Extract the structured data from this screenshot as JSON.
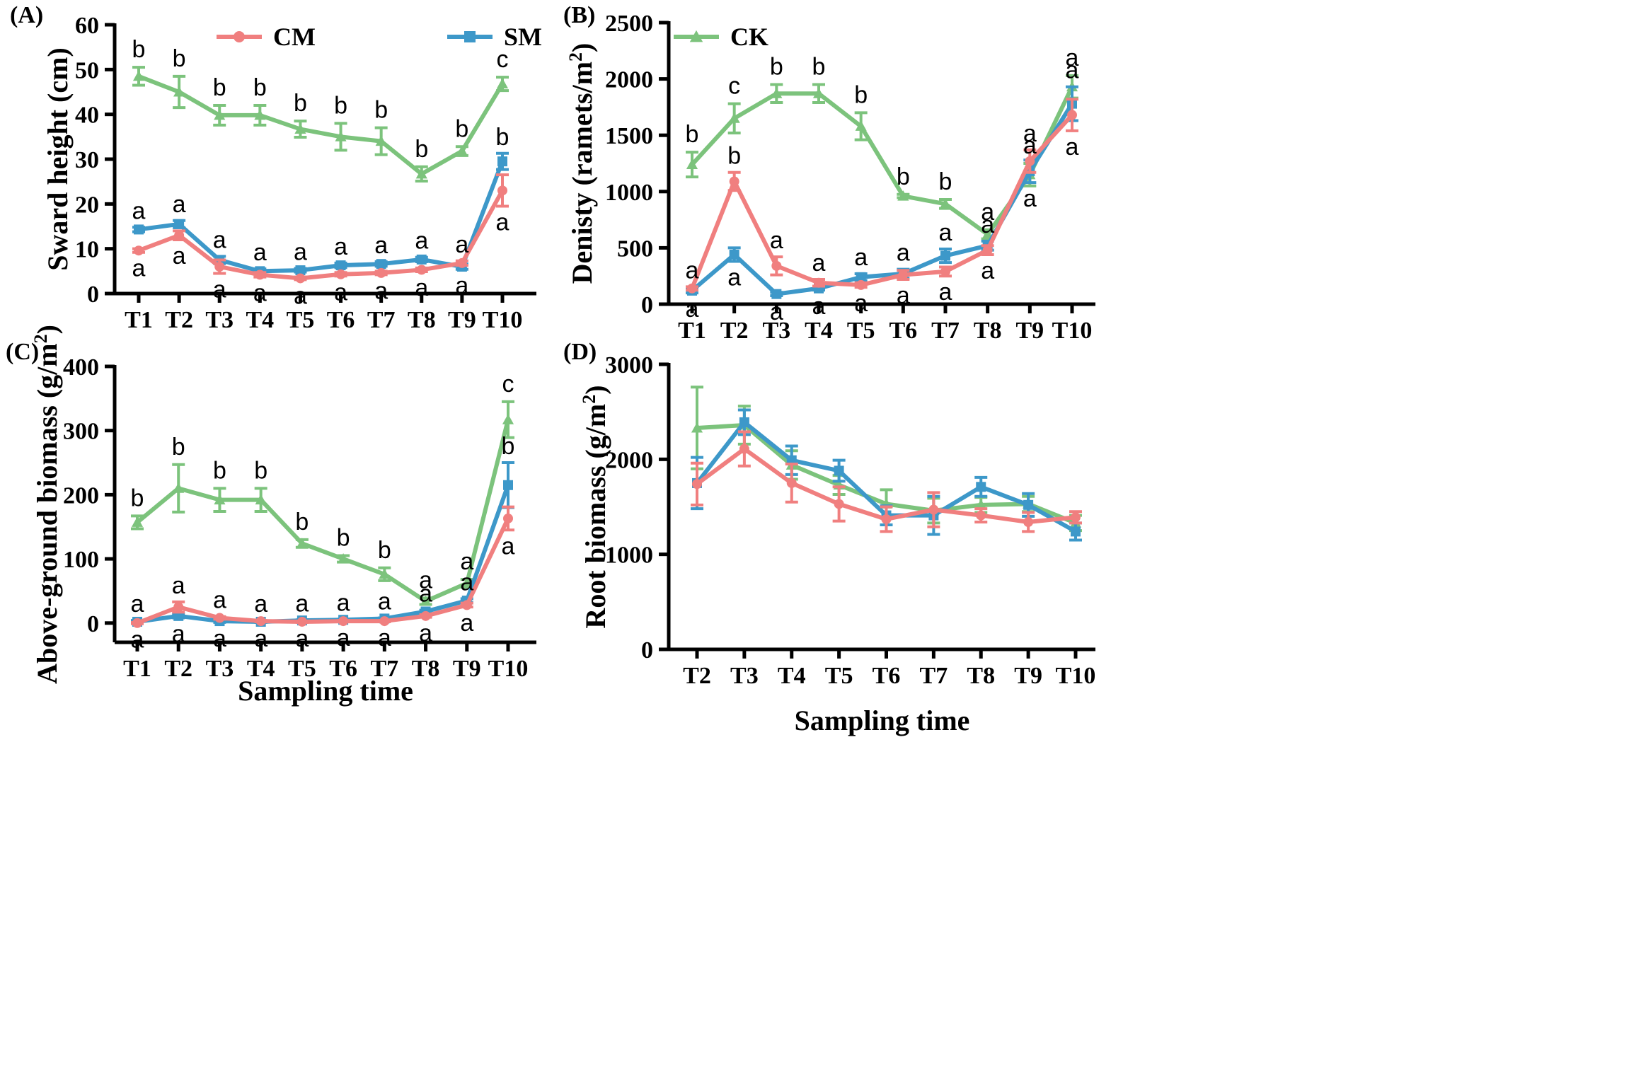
{
  "colors": {
    "CM": "#f07f7f",
    "SM": "#3d98c9",
    "CK": "#7cc37c"
  },
  "legend": [
    {
      "key": "CM",
      "label": "CM",
      "marker": "circle"
    },
    {
      "key": "SM",
      "label": "SM",
      "marker": "square"
    },
    {
      "key": "CK",
      "label": "CK",
      "marker": "triangle"
    }
  ],
  "chart_data": [
    {
      "panel": "(A)",
      "type": "line",
      "ylabel": "Sward height (cm)",
      "xlabel": "",
      "ylim": [
        0,
        60
      ],
      "yticks": [
        0,
        10,
        20,
        30,
        40,
        50,
        60
      ],
      "categories": [
        "T1",
        "T2",
        "T3",
        "T4",
        "T5",
        "T6",
        "T7",
        "T8",
        "T9",
        "T10"
      ],
      "series": [
        {
          "name": "CK",
          "values": [
            48.5,
            45,
            39.8,
            39.8,
            36.7,
            35,
            34,
            26.7,
            31.8,
            46.8
          ],
          "errors": [
            2,
            3.5,
            2.2,
            2.2,
            1.8,
            3,
            3,
            1.6,
            1,
            1.5
          ],
          "labels": [
            "b",
            "b",
            "b",
            "b",
            "b",
            "b",
            "b",
            "b",
            "b",
            "c"
          ]
        },
        {
          "name": "SM",
          "values": [
            14.3,
            15.5,
            7.5,
            5,
            5.2,
            6.3,
            6.6,
            7.6,
            6,
            29.5
          ],
          "errors": [
            0.5,
            0.8,
            0.8,
            0.5,
            0.4,
            0.5,
            0.5,
            0.5,
            0.6,
            1.8
          ],
          "labels": [
            "a",
            "a",
            "a",
            "a",
            "a",
            "a",
            "a",
            "a",
            "a",
            "b"
          ]
        },
        {
          "name": "CM",
          "values": [
            9.6,
            13,
            6,
            4.2,
            3.4,
            4.3,
            4.6,
            5.3,
            6.8,
            23
          ],
          "errors": [
            0.4,
            1,
            1.5,
            0.5,
            0.3,
            0.4,
            0.4,
            0.4,
            0.5,
            3.5
          ],
          "labels": [
            "a",
            "a",
            "a",
            "a",
            "a",
            "a",
            "a",
            "a",
            "a",
            "a"
          ]
        }
      ]
    },
    {
      "panel": "(B)",
      "type": "line",
      "ylabel": "Denisty (ramets/m²)",
      "xlabel": "",
      "ylim": [
        0,
        2500
      ],
      "yticks": [
        0,
        500,
        1000,
        1500,
        2000,
        2500
      ],
      "categories": [
        "T1",
        "T2",
        "T3",
        "T4",
        "T5",
        "T6",
        "T7",
        "T8",
        "T9",
        "T10"
      ],
      "series": [
        {
          "name": "CK",
          "values": [
            1240,
            1650,
            1870,
            1870,
            1580,
            960,
            890,
            620,
            1150,
            1930
          ],
          "errors": [
            110,
            130,
            80,
            80,
            120,
            15,
            40,
            40,
            100,
            100
          ],
          "labels": [
            "b",
            "c",
            "b",
            "b",
            "b",
            "b",
            "b",
            "a",
            "a",
            "a"
          ]
        },
        {
          "name": "SM",
          "values": [
            120,
            440,
            90,
            140,
            240,
            270,
            430,
            520,
            1180,
            1780
          ],
          "errors": [
            20,
            60,
            15,
            15,
            30,
            40,
            60,
            40,
            100,
            150
          ],
          "labels": [
            "a",
            "a",
            "a",
            "a",
            "a",
            "a",
            "a",
            "a",
            "a",
            "a"
          ]
        },
        {
          "name": "CM",
          "values": [
            140,
            1090,
            340,
            190,
            170,
            260,
            290,
            480,
            1270,
            1680
          ],
          "errors": [
            15,
            80,
            80,
            30,
            20,
            40,
            40,
            40,
            100,
            140
          ],
          "labels": [
            "a",
            "b",
            "a",
            "a",
            "a",
            "a",
            "a",
            "a",
            "a",
            "a"
          ]
        }
      ]
    },
    {
      "panel": "(C)",
      "type": "line",
      "ylabel": "Above-ground biomass (g/m²)",
      "xlabel": "Sampling time",
      "ylim": [
        -30,
        400
      ],
      "yticks": [
        0,
        100,
        200,
        300,
        400
      ],
      "categories": [
        "T1",
        "T2",
        "T3",
        "T4",
        "T5",
        "T6",
        "T7",
        "T8",
        "T9",
        "T10"
      ],
      "series": [
        {
          "name": "CK",
          "values": [
            157,
            210,
            192,
            192,
            124,
            100,
            76,
            34,
            62,
            317
          ],
          "errors": [
            10,
            37,
            18,
            18,
            6,
            5,
            10,
            5,
            6,
            28
          ],
          "labels": [
            "b",
            "b",
            "b",
            "b",
            "b",
            "b",
            "b",
            "a",
            "a",
            "c"
          ]
        },
        {
          "name": "SM",
          "values": [
            2,
            11,
            3,
            2,
            4,
            5,
            7,
            18,
            35,
            215
          ],
          "errors": [
            2,
            3,
            2,
            1,
            1,
            1,
            1,
            2,
            3,
            35
          ],
          "labels": [
            "a",
            "a",
            "a",
            "a",
            "a",
            "a",
            "a",
            "a",
            "a",
            "b"
          ]
        },
        {
          "name": "CM",
          "values": [
            0,
            25,
            8,
            3,
            2,
            3,
            3,
            11,
            28,
            163
          ],
          "errors": [
            1,
            8,
            2,
            1,
            1,
            1,
            1,
            2,
            3,
            18
          ],
          "labels": [
            "a",
            "a",
            "a",
            "a",
            "a",
            "a",
            "a",
            "a",
            "a",
            "a"
          ]
        }
      ]
    },
    {
      "panel": "(D)",
      "type": "line",
      "ylabel": "Root biomass (g/m²)",
      "xlabel": "Sampling time",
      "ylim": [
        0,
        3000
      ],
      "yticks": [
        0,
        1000,
        2000,
        3000
      ],
      "categories": [
        "T2",
        "T3",
        "T4",
        "T5",
        "T6",
        "T7",
        "T8",
        "T9",
        "T10"
      ],
      "series": [
        {
          "name": "CK",
          "values": [
            2330,
            2360,
            1940,
            1730,
            1530,
            1460,
            1520,
            1530,
            1330
          ],
          "errors": [
            430,
            200,
            150,
            100,
            150,
            130,
            80,
            80,
            80
          ],
          "labels": []
        },
        {
          "name": "SM",
          "values": [
            1750,
            2390,
            1990,
            1880,
            1410,
            1410,
            1710,
            1520,
            1240
          ],
          "errors": [
            270,
            130,
            150,
            110,
            100,
            200,
            100,
            120,
            90
          ],
          "labels": []
        },
        {
          "name": "CM",
          "values": [
            1740,
            2110,
            1750,
            1530,
            1370,
            1470,
            1410,
            1340,
            1390
          ],
          "errors": [
            220,
            180,
            200,
            180,
            130,
            180,
            70,
            100,
            60
          ],
          "labels": []
        }
      ]
    }
  ]
}
